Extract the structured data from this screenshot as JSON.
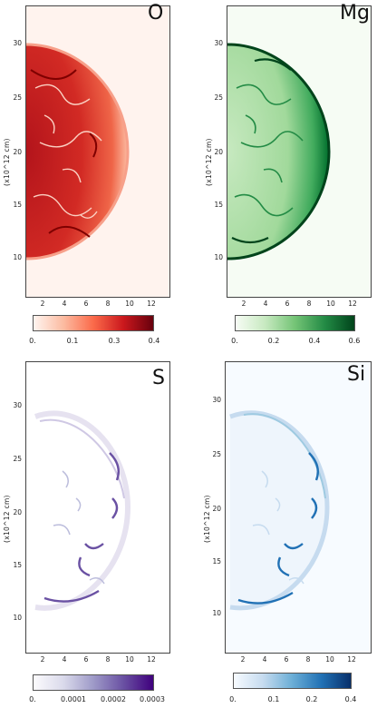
{
  "chart_data": [
    {
      "type": "heatmap",
      "element": "O",
      "ylabel": "(x10^12 cm)",
      "x_ticks": [
        "2",
        "4",
        "6",
        "8",
        "10",
        "12"
      ],
      "y_ticks": [
        "10",
        "15",
        "20",
        "25",
        "30"
      ],
      "colorbar_ticks": [
        "0.",
        "0.1",
        "0.3",
        "0.4"
      ],
      "colorbar_range": [
        0,
        0.4
      ],
      "colors": {
        "low": "#fff5f0",
        "high": "#7f0000"
      }
    },
    {
      "type": "heatmap",
      "element": "Mg",
      "ylabel": "(x10^12 cm)",
      "x_ticks": [
        "2",
        "4",
        "6",
        "8",
        "10",
        "12"
      ],
      "y_ticks": [
        "10",
        "15",
        "20",
        "25",
        "30"
      ],
      "colorbar_ticks": [
        "0.",
        "0.2",
        "0.4",
        "0.6"
      ],
      "colorbar_range": [
        0,
        0.6
      ],
      "colors": {
        "low": "#f7fcf5",
        "high": "#00441b"
      }
    },
    {
      "type": "heatmap",
      "element": "S",
      "ylabel": "(x10^12 cm)",
      "x_ticks": [
        "2",
        "4",
        "6",
        "8",
        "10",
        "12"
      ],
      "y_ticks": [
        "10",
        "15",
        "20",
        "25",
        "30"
      ],
      "colorbar_ticks": [
        "0.",
        "0.0001",
        "0.0002",
        "0.0003"
      ],
      "colorbar_range": [
        0,
        0.0003
      ],
      "colors": {
        "low": "#fcfbfd",
        "high": "#3f007d"
      }
    },
    {
      "type": "heatmap",
      "element": "Si",
      "ylabel": "(x10^12 cm)",
      "x_ticks": [
        "2",
        "4",
        "6",
        "8",
        "10",
        "12"
      ],
      "y_ticks": [
        "10",
        "15",
        "20",
        "25",
        "30"
      ],
      "colorbar_ticks": [
        "0.",
        "0.1",
        "0.2",
        "0.4"
      ],
      "colorbar_range": [
        0,
        0.4
      ],
      "colors": {
        "low": "#f7fbff",
        "high": "#08306b"
      }
    }
  ]
}
